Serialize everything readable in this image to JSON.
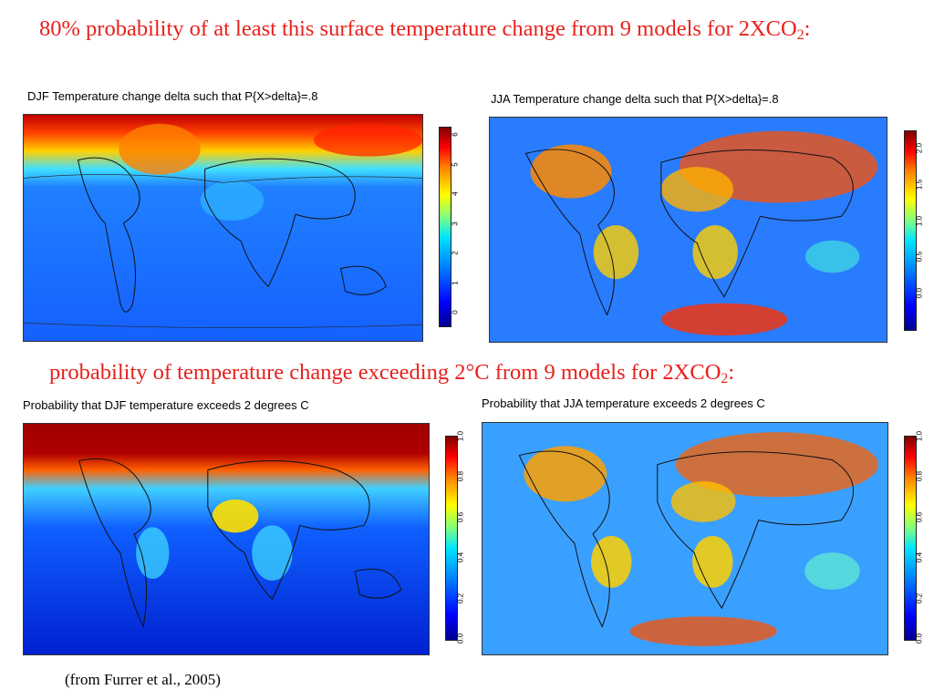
{
  "heading_top": {
    "prefix": "80% probability of at least this surface temperature change  from 9 models for 2XCO",
    "subscript": "2",
    "suffix": ":"
  },
  "heading_mid": {
    "prefix": "probability of temperature change exceeding 2°C from 9 models for 2XCO",
    "subscript": "2",
    "suffix": ":"
  },
  "panels": {
    "djf_delta": {
      "title": "DJF Temperature change delta such that P{X>delta}=.8",
      "colorbar_ticks": [
        "0",
        "1",
        "2",
        "3",
        "4",
        "5",
        "6"
      ]
    },
    "jja_delta": {
      "title": "JJA Temperature change delta such that P{X>delta}=.8",
      "colorbar_ticks": [
        "0.0",
        "0.5",
        "1.0",
        "1.5",
        "2.0"
      ]
    },
    "djf_prob": {
      "title": "Probability that DJF temperature exceeds 2 degrees C",
      "colorbar_ticks": [
        "0.0",
        "0.2",
        "0.4",
        "0.6",
        "0.8",
        "1.0"
      ]
    },
    "jja_prob": {
      "title": "Probability that JJA temperature exceeds 2 degrees C",
      "colorbar_ticks": [
        "0.0",
        "0.2",
        "0.4",
        "0.6",
        "0.8",
        "1.0"
      ]
    }
  },
  "caption": "(from Furrer et al., 2005)"
}
